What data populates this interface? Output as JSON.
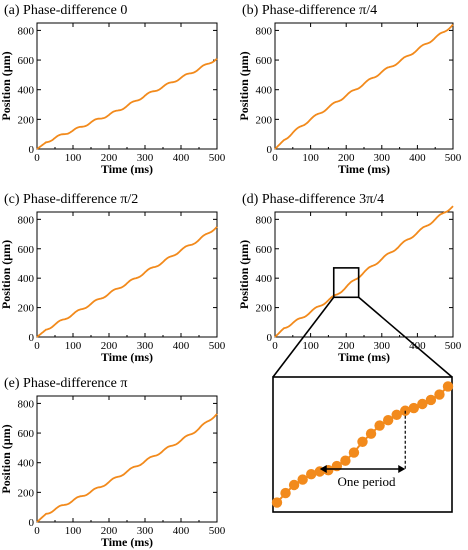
{
  "chart_data": [
    {
      "type": "line",
      "title": "(a) Phase-difference 0",
      "xlabel": "Time (ms)",
      "ylabel": "Position (μm)",
      "xlim": [
        0,
        500
      ],
      "ylim": [
        0,
        850
      ],
      "xticks": [
        "0",
        "100",
        "200",
        "300",
        "400",
        "500"
      ],
      "yticks": [
        "0",
        "200",
        "400",
        "600",
        "800"
      ],
      "x": [
        0,
        25,
        50,
        75,
        100,
        125,
        150,
        175,
        200,
        225,
        250,
        275,
        300,
        325,
        350,
        375,
        400,
        425,
        450,
        475,
        500
      ],
      "y": [
        0,
        45,
        75,
        100,
        125,
        150,
        180,
        205,
        230,
        260,
        290,
        325,
        360,
        390,
        420,
        450,
        480,
        510,
        540,
        575,
        610
      ],
      "color": "#f28a1c",
      "grid": false
    },
    {
      "type": "line",
      "title": "(b) Phase-difference π/4",
      "xlabel": "Time (ms)",
      "ylabel": "Position (μm)",
      "xlim": [
        0,
        500
      ],
      "ylim": [
        0,
        850
      ],
      "xticks": [
        "0",
        "100",
        "200",
        "300",
        "400",
        "500"
      ],
      "yticks": [
        "0",
        "200",
        "400",
        "600",
        "800"
      ],
      "x": [
        0,
        25,
        50,
        75,
        100,
        125,
        150,
        175,
        200,
        225,
        250,
        275,
        300,
        325,
        350,
        375,
        400,
        425,
        450,
        475,
        500
      ],
      "y": [
        0,
        60,
        110,
        155,
        200,
        240,
        280,
        320,
        360,
        400,
        440,
        480,
        520,
        555,
        590,
        630,
        670,
        710,
        750,
        790,
        840
      ],
      "color": "#f28a1c",
      "grid": false
    },
    {
      "type": "line",
      "title": "(c) Phase-difference π/2",
      "xlabel": "Time (ms)",
      "ylabel": "Position (μm)",
      "xlim": [
        0,
        500
      ],
      "ylim": [
        0,
        850
      ],
      "xticks": [
        "0",
        "100",
        "200",
        "300",
        "400",
        "500"
      ],
      "yticks": [
        "0",
        "200",
        "400",
        "600",
        "800"
      ],
      "x": [
        0,
        25,
        50,
        75,
        100,
        125,
        150,
        175,
        200,
        225,
        250,
        275,
        300,
        325,
        350,
        375,
        400,
        425,
        450,
        475,
        500
      ],
      "y": [
        0,
        50,
        85,
        120,
        155,
        190,
        225,
        260,
        295,
        330,
        365,
        400,
        440,
        475,
        510,
        550,
        590,
        625,
        660,
        705,
        750
      ],
      "color": "#f28a1c",
      "grid": false
    },
    {
      "type": "line",
      "title": "(d) Phase-difference 3π/4",
      "xlabel": "Time (ms)",
      "ylabel": "Position (μm)",
      "xlim": [
        0,
        500
      ],
      "ylim": [
        0,
        850
      ],
      "xticks": [
        "0",
        "100",
        "200",
        "300",
        "400",
        "500"
      ],
      "yticks": [
        "0",
        "200",
        "400",
        "600",
        "800"
      ],
      "x": [
        0,
        25,
        50,
        75,
        100,
        125,
        150,
        175,
        200,
        225,
        250,
        275,
        300,
        325,
        350,
        375,
        400,
        425,
        450,
        475,
        500
      ],
      "y": [
        0,
        60,
        95,
        130,
        170,
        210,
        250,
        290,
        340,
        390,
        440,
        485,
        530,
        575,
        620,
        665,
        710,
        755,
        800,
        845,
        890
      ],
      "color": "#f28a1c",
      "grid": false,
      "inset": {
        "box_xlim": [
          165,
          235
        ],
        "box_ylim": [
          270,
          470
        ],
        "points_y": [
          0.07,
          0.14,
          0.2,
          0.24,
          0.28,
          0.3,
          0.31,
          0.34,
          0.38,
          0.44,
          0.52,
          0.58,
          0.64,
          0.68,
          0.72,
          0.75,
          0.77,
          0.8,
          0.83,
          0.87,
          0.93
        ],
        "annotation": "One period",
        "period_start_index": 5,
        "period_end_index": 15
      }
    },
    {
      "type": "line",
      "title": "(e) Phase-difference π",
      "xlabel": "Time (ms)",
      "ylabel": "Position (μm)",
      "xlim": [
        0,
        500
      ],
      "ylim": [
        0,
        850
      ],
      "xticks": [
        "0",
        "100",
        "200",
        "300",
        "400",
        "500"
      ],
      "yticks": [
        "0",
        "200",
        "400",
        "600",
        "800"
      ],
      "x": [
        0,
        25,
        50,
        75,
        100,
        125,
        150,
        175,
        200,
        225,
        250,
        275,
        300,
        325,
        350,
        375,
        400,
        425,
        450,
        475,
        500
      ],
      "y": [
        0,
        55,
        85,
        115,
        145,
        175,
        205,
        235,
        270,
        305,
        340,
        375,
        410,
        445,
        480,
        515,
        550,
        590,
        630,
        680,
        730
      ],
      "color": "#f28a1c",
      "grid": false
    }
  ]
}
